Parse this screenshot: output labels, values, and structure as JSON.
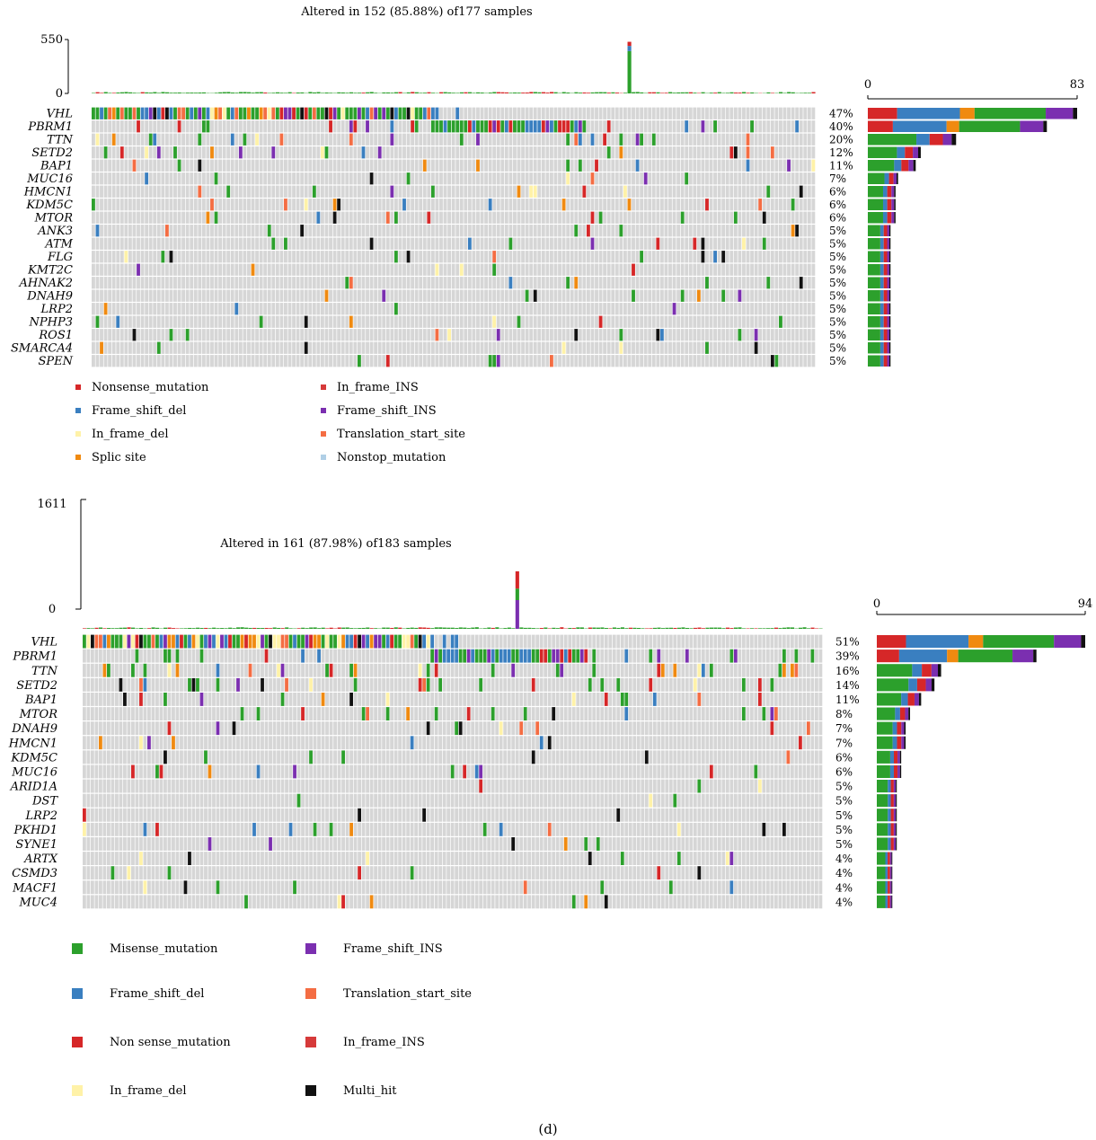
{
  "figure_label": "(d)",
  "colors": {
    "Missense_mutation": "#2ca02c",
    "Nonsense_mutation": "#d62728",
    "Frame_shift_del": "#3a7fc0",
    "Frame_shift_INS": "#7b2fb0",
    "In_frame_del": "#fff2a8",
    "In_frame_INS": "#d63a3a",
    "Translation_start_site": "#f46d43",
    "Splic_site": "#f08a10",
    "Nonstop_mutation": "#b0cfe6",
    "Multi_hit": "#111111",
    "empty": "#d6d6d6"
  },
  "chart_data": [
    {
      "type": "heatmap",
      "title": "Altered in 152 (85.88%) of177 samples",
      "n_samples": 177,
      "tmb_axis": {
        "ylim": [
          0,
          550
        ],
        "ticks": [
          "550",
          "0"
        ],
        "peak_sample": 131,
        "peak_value": 545
      },
      "bar_axis": {
        "xlim": [
          0,
          83
        ],
        "ticks": [
          "0",
          "83"
        ]
      },
      "genes": [
        "VHL",
        "PBRM1",
        "TTN",
        "SETD2",
        "BAP1",
        "MUC16",
        "HMCN1",
        "KDM5C",
        "MTOR",
        "ANK3",
        "ATM",
        "FLG",
        "KMT2C",
        "AHNAK2",
        "DNAH9",
        "LRP2",
        "NPHP3",
        "ROS1",
        "SMARCA4",
        "SPEN"
      ],
      "percents": [
        "47%",
        "40%",
        "20%",
        "12%",
        "11%",
        "7%",
        "6%",
        "6%",
        "6%",
        "5%",
        "5%",
        "5%",
        "5%",
        "5%",
        "5%",
        "5%",
        "5%",
        "5%",
        "5%",
        "5%"
      ],
      "counts": [
        83,
        71,
        35,
        21,
        19,
        12,
        11,
        11,
        11,
        9,
        9,
        9,
        9,
        9,
        9,
        9,
        9,
        9,
        9,
        9
      ],
      "legend": [
        {
          "label": "Nonsense_mutation",
          "key": "Nonsense_mutation"
        },
        {
          "label": "In_frame_INS",
          "key": "In_frame_INS"
        },
        {
          "label": "Frame_shift_del",
          "key": "Frame_shift_del"
        },
        {
          "label": "Frame_shift_INS",
          "key": "Frame_shift_INS"
        },
        {
          "label": "In_frame_del",
          "key": "In_frame_del"
        },
        {
          "label": "Translation_start_site",
          "key": "Translation_start_site"
        },
        {
          "label": "Splic site",
          "key": "Splic_site"
        },
        {
          "label": "Nonstop_mutation",
          "key": "Nonstop_mutation"
        }
      ]
    },
    {
      "type": "heatmap",
      "title": "Altered in 161 (87.98%) of183 samples",
      "n_samples": 183,
      "tmb_axis": {
        "ylim": [
          0,
          1611
        ],
        "ticks": [
          "1611",
          "0"
        ],
        "peak_sample": 107,
        "peak_value": 1611
      },
      "bar_axis": {
        "xlim": [
          0,
          94
        ],
        "ticks": [
          "0",
          "94"
        ]
      },
      "genes": [
        "VHL",
        "PBRM1",
        "TTN",
        "SETD2",
        "BAP1",
        "MTOR",
        "DNAH9",
        "HMCN1",
        "KDM5C",
        "MUC16",
        "ARID1A",
        "DST",
        "LRP2",
        "PKHD1",
        "SYNE1",
        "ARTX",
        "CSMD3",
        "MACF1",
        "MUC4"
      ],
      "percents": [
        "51%",
        "39%",
        "16%",
        "14%",
        "11%",
        "8%",
        "7%",
        "7%",
        "6%",
        "6%",
        "5%",
        "5%",
        "5%",
        "5%",
        "5%",
        "4%",
        "4%",
        "4%",
        "4%"
      ],
      "counts": [
        94,
        72,
        29,
        26,
        20,
        15,
        13,
        13,
        11,
        11,
        9,
        9,
        9,
        9,
        9,
        7,
        7,
        7,
        7
      ],
      "legend": [
        {
          "label": "Misense_mutation",
          "key": "Missense_mutation"
        },
        {
          "label": "Frame_shift_INS",
          "key": "Frame_shift_INS"
        },
        {
          "label": "Frame_shift_del",
          "key": "Frame_shift_del"
        },
        {
          "label": "Translation_start_site",
          "key": "Translation_start_site"
        },
        {
          "label": "Non sense_mutation",
          "key": "Nonsense_mutation"
        },
        {
          "label": "In_frame_INS",
          "key": "In_frame_INS"
        },
        {
          "label": "In_frame_del",
          "key": "In_frame_del"
        },
        {
          "label": "Multi_hit",
          "key": "Multi_hit"
        }
      ]
    }
  ]
}
